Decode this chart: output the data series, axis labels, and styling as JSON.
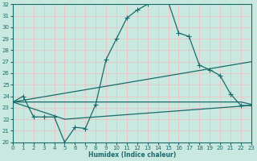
{
  "xlabel": "Humidex (Indice chaleur)",
  "x_ticks": [
    0,
    1,
    2,
    3,
    4,
    5,
    6,
    7,
    8,
    9,
    10,
    11,
    12,
    13,
    14,
    15,
    16,
    17,
    18,
    19,
    20,
    21,
    22,
    23
  ],
  "y_ticks": [
    20,
    21,
    22,
    23,
    24,
    25,
    26,
    27,
    28,
    29,
    30,
    31,
    32
  ],
  "xlim": [
    0,
    23
  ],
  "ylim": [
    20,
    32
  ],
  "bg_color": "#c8e8e0",
  "grid_color": "#e8c8c8",
  "line_color": "#1a6b6b",
  "line1_x": [
    0,
    1,
    2,
    3,
    4,
    5,
    6,
    7,
    8,
    9,
    10,
    11,
    12,
    13,
    14,
    15,
    16,
    17,
    18,
    19,
    20,
    21,
    22,
    23
  ],
  "line1_y": [
    23.5,
    24.0,
    22.2,
    22.2,
    22.2,
    20.0,
    21.3,
    21.2,
    23.3,
    27.2,
    29.0,
    30.8,
    31.5,
    32.0,
    32.3,
    32.2,
    29.5,
    29.2,
    26.7,
    26.3,
    25.8,
    24.2,
    23.2,
    23.2
  ],
  "line2_x": [
    0,
    1,
    2,
    3,
    4,
    5,
    6,
    7,
    8,
    9,
    10,
    11,
    12,
    13,
    14,
    15,
    16,
    17,
    18,
    19,
    20,
    21,
    22,
    23
  ],
  "line2_y": [
    23.5,
    23.5,
    23.5,
    23.5,
    23.5,
    23.5,
    23.5,
    23.5,
    23.5,
    23.5,
    23.5,
    23.5,
    23.5,
    23.5,
    23.5,
    23.5,
    23.5,
    23.5,
    23.5,
    23.5,
    23.5,
    23.5,
    23.5,
    23.3
  ],
  "line3_x": [
    0,
    23
  ],
  "line3_y": [
    23.5,
    27.0
  ],
  "line4_x": [
    0,
    5,
    23
  ],
  "line4_y": [
    23.5,
    22.0,
    23.2
  ]
}
